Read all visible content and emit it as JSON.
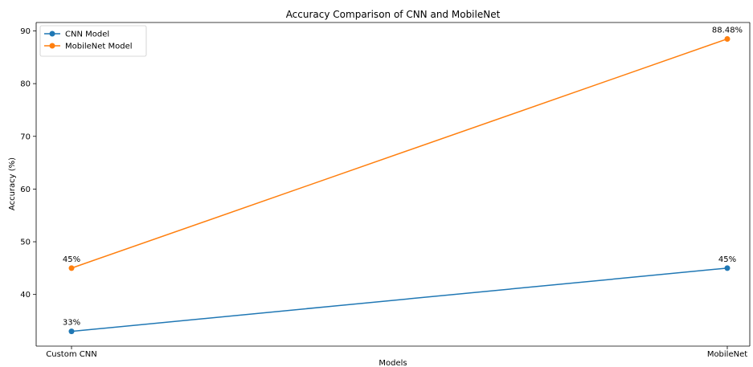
{
  "chart_data": {
    "type": "line",
    "title": "Accuracy Comparison of CNN and MobileNet",
    "xlabel": "Models",
    "ylabel": "Accuracy (%)",
    "categories": [
      "Custom CNN",
      "MobileNet"
    ],
    "ylim": [
      30.2,
      91.6
    ],
    "yticks": [
      40,
      50,
      60,
      70,
      80,
      90
    ],
    "grid": false,
    "legend_position": "top-left",
    "series": [
      {
        "name": "CNN Model",
        "color": "#1f77b4",
        "values": [
          33,
          45
        ],
        "labels": [
          "33%",
          "45%"
        ]
      },
      {
        "name": "MobileNet Model",
        "color": "#ff7f0e",
        "values": [
          45,
          88.48
        ],
        "labels": [
          "45%",
          "88.48%"
        ]
      }
    ]
  }
}
